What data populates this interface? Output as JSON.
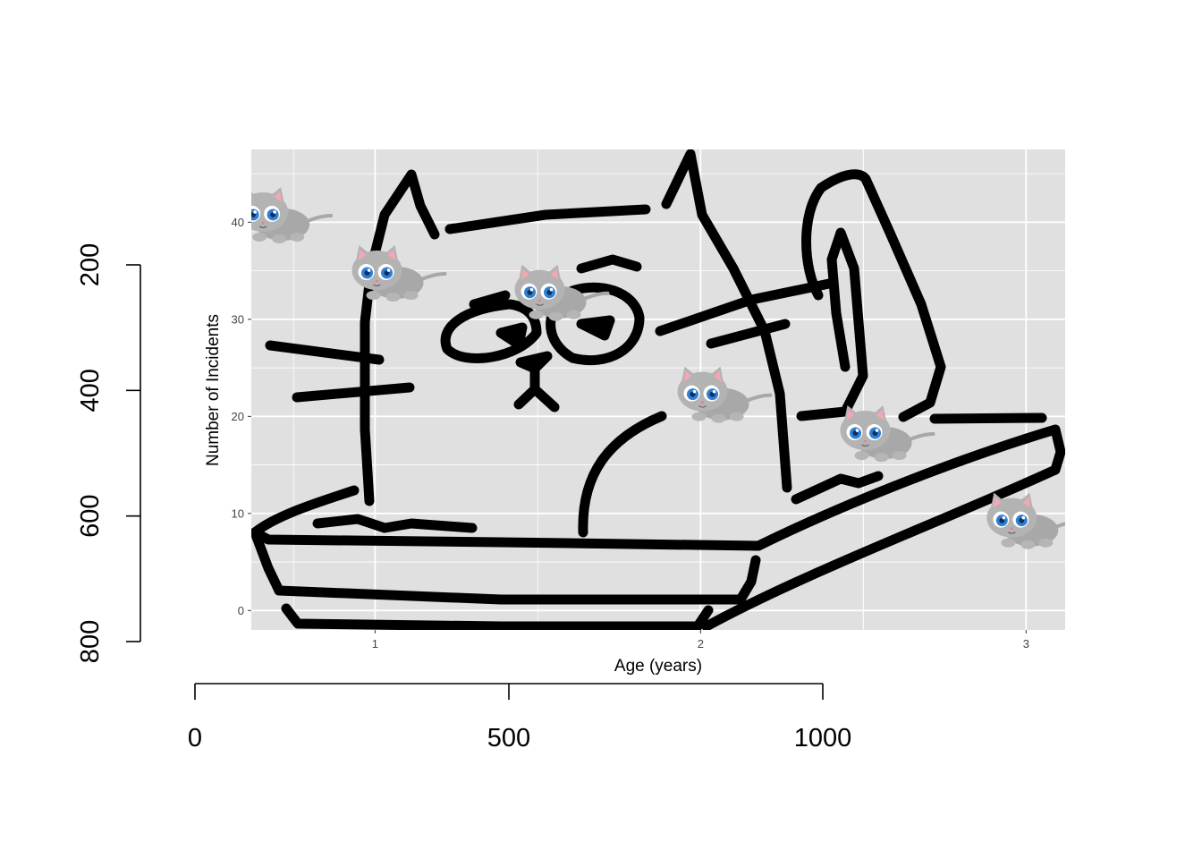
{
  "chart_data": [
    {
      "type": "scatter",
      "title": "",
      "xlabel": "Age (years)",
      "ylabel": "Number of Incidents",
      "xlim": [
        0.62,
        3.12
      ],
      "ylim": [
        -2,
        47.5
      ],
      "x_ticks": [
        1,
        2,
        3
      ],
      "y_ticks": [
        0,
        10,
        20,
        30,
        40
      ],
      "grid": true,
      "background": "#e0e0e0",
      "grid_color": "#ffffff",
      "marker": "cartoon-kitten",
      "points": [
        {
          "x": 0.7,
          "y": 40.5
        },
        {
          "x": 1.05,
          "y": 34.5
        },
        {
          "x": 1.55,
          "y": 32.5
        },
        {
          "x": 2.05,
          "y": 22.0
        },
        {
          "x": 2.55,
          "y": 18.0
        },
        {
          "x": 3.0,
          "y": 9.0
        }
      ],
      "overlay": "hand-drawn cat in a litter box (black marker strokes)"
    },
    {
      "type": "axes",
      "left_axis": {
        "ticks": [
          200,
          400,
          600,
          800
        ],
        "labels": [
          "200",
          "400",
          "600",
          "800"
        ],
        "range": [
          200,
          800
        ]
      },
      "bottom_axis": {
        "ticks": [
          0,
          500,
          1000
        ],
        "labels": [
          "0",
          "500",
          "1000"
        ],
        "range": [
          0,
          1000
        ]
      }
    }
  ],
  "colors": {
    "ink": "#000000",
    "panel": "#e0e0e0",
    "grid": "#ffffff",
    "kitten_fur": "#a9a9a9",
    "kitten_eye": "#2f7fd3",
    "kitten_ear": "#f3a6b4"
  }
}
